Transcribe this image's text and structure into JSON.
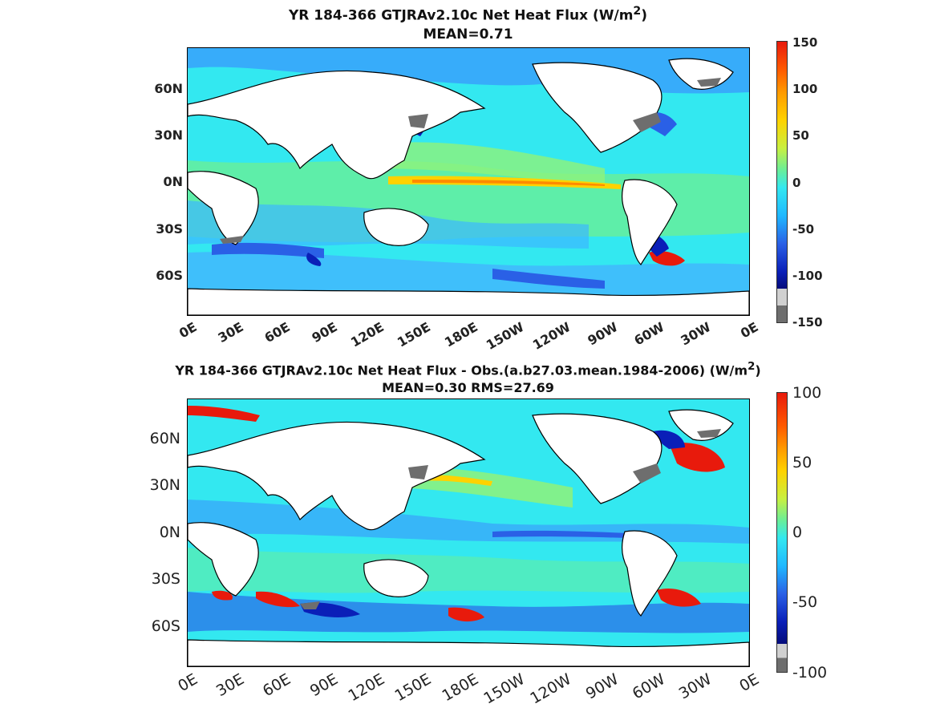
{
  "panel_top": {
    "title_line1_pre": "YR 184-366 GTJRAv2.10c  Net Heat Flux (W/m",
    "title_sup": "2",
    "title_line1_post": ")",
    "title_line2": "MEAN=0.71",
    "y_labels": [
      "60N",
      "30N",
      "0N",
      "30S",
      "60S"
    ],
    "x_labels": [
      "0E",
      "30E",
      "60E",
      "90E",
      "120E",
      "150E",
      "180E",
      "150W",
      "120W",
      "90W",
      "60W",
      "30W",
      "0E"
    ],
    "colorbar_labels": [
      "150",
      "100",
      "50",
      "0",
      "-50",
      "-100",
      "-150"
    ],
    "colorbar_range": [
      -150,
      150
    ]
  },
  "panel_bottom": {
    "title_line1_pre": "YR 184-366 GTJRAv2.10c  Net Heat Flux - Obs.(a.b27.03.mean.1984-2006) (W/m",
    "title_sup": "2",
    "title_line1_post": ")",
    "title_line2": "MEAN=0.30 RMS=27.69",
    "y_labels": [
      "60N",
      "30N",
      "0N",
      "30S",
      "60S"
    ],
    "x_labels": [
      "0E",
      "30E",
      "60E",
      "90E",
      "120E",
      "150E",
      "180E",
      "150W",
      "120W",
      "90W",
      "60W",
      "30W",
      "0E"
    ],
    "colorbar_labels": [
      "100",
      "50",
      "0",
      "-50",
      "-100"
    ],
    "colorbar_range": [
      -100,
      100
    ]
  },
  "colors": {
    "ocean_base": "#33e8f0",
    "land": "#ffffff",
    "coastline": "#000000",
    "ice": "#6e6e6e",
    "positive_high": "#e81a0c",
    "positive_mid": "#ffd200",
    "near_zero": "#7ff08a",
    "negative_mid": "#3a8cff",
    "negative_high": "#0a1fb8"
  }
}
